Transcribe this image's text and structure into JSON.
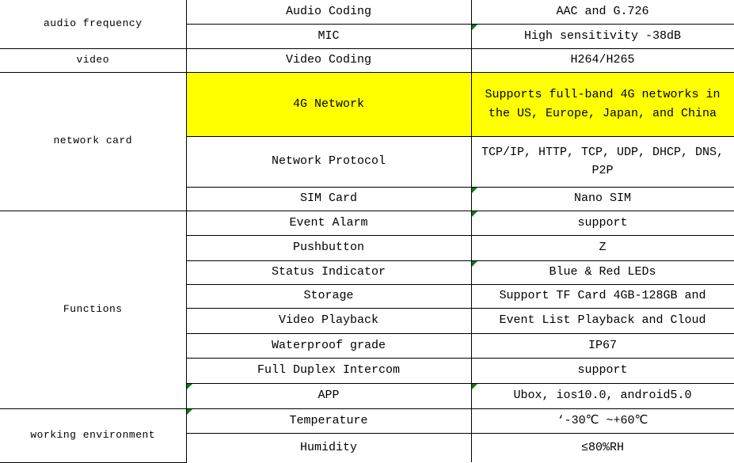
{
  "table": {
    "categories": [
      {
        "label": "audio frequency"
      },
      {
        "label": "video"
      },
      {
        "label": "network card"
      },
      {
        "label": "Functions"
      },
      {
        "label": "working environment"
      }
    ],
    "rows": [
      {
        "property": "Audio Coding",
        "value": "AAC and G.726"
      },
      {
        "property": "MIC",
        "value": "High sensitivity -38dB"
      },
      {
        "property": "Video Coding",
        "value": "H264/H265"
      },
      {
        "property": "4G Network",
        "value": "Supports full-band 4G networks in the US, Europe, Japan, and China",
        "highlighted": true
      },
      {
        "property": "Network Protocol",
        "value": "TCP/IP, HTTP, TCP, UDP, DHCP, DNS, P2P"
      },
      {
        "property": "SIM Card",
        "value": "Nano SIM"
      },
      {
        "property": "Event Alarm",
        "value": "support"
      },
      {
        "property": "Pushbutton",
        "value": "Z"
      },
      {
        "property": "Status Indicator",
        "value": "Blue & Red LEDs"
      },
      {
        "property": "Storage",
        "value": "Support TF Card 4GB-128GB and"
      },
      {
        "property": "Video Playback",
        "value": "Event List Playback and Cloud"
      },
      {
        "property": "Waterproof grade",
        "value": "IP67"
      },
      {
        "property": "Full Duplex Intercom",
        "value": "support"
      },
      {
        "property": "APP",
        "value": "Ubox, ios10.0, android5.0"
      },
      {
        "property": "Temperature",
        "value": "‘-30℃ ~+60℃"
      },
      {
        "property": "Humidity",
        "value": "≤80%RH"
      }
    ]
  },
  "colors": {
    "highlight": "#ffff00",
    "cell_flag_green": "#0a7d0a",
    "border": "#000000"
  }
}
